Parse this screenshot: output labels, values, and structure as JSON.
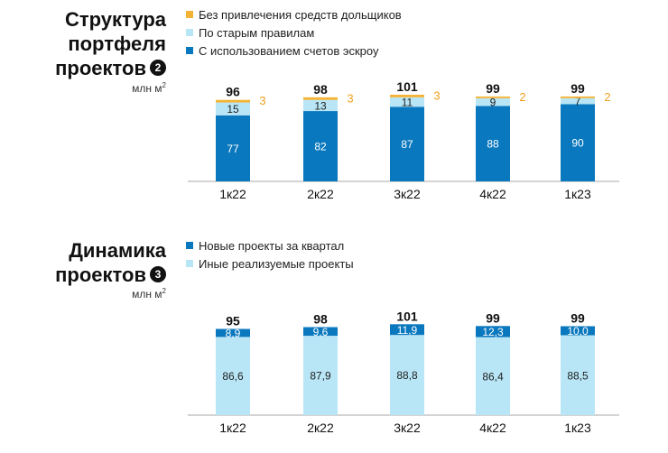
{
  "chart_data": [
    {
      "type": "bar",
      "stacked": true,
      "title_lines": [
        "Структура",
        "портфеля",
        "проектов"
      ],
      "badge": "2",
      "unit": "млн м",
      "unit_sup": "2",
      "categories": [
        "1к22",
        "2к22",
        "3к22",
        "4к22",
        "1к23"
      ],
      "totals": [
        "96",
        "98",
        "101",
        "99",
        "99"
      ],
      "legend_order": [
        2,
        1,
        0
      ],
      "series": [
        {
          "name": "С использованием счетов эскроу",
          "values": [
            77,
            82,
            87,
            88,
            90
          ],
          "labels": [
            "77",
            "82",
            "87",
            "88",
            "90"
          ],
          "color": "#0a78be",
          "label_color": "#ffffff",
          "label_position": "inside"
        },
        {
          "name": "По старым правилам",
          "values": [
            15,
            13,
            11,
            9,
            7
          ],
          "labels": [
            "15",
            "13",
            "11",
            "9",
            "7"
          ],
          "color": "#b8e6f7",
          "label_color": "#222222",
          "label_position": "inside"
        },
        {
          "name": "Без привлечения средств дольщиков",
          "values": [
            3,
            3,
            3,
            2,
            2
          ],
          "labels": [
            "3",
            "3",
            "3",
            "2",
            "2"
          ],
          "color": "#f5b335",
          "label_color": "#f0a020",
          "label_position": "outside"
        }
      ],
      "ylim": [
        0,
        101
      ]
    },
    {
      "type": "bar",
      "stacked": true,
      "title_lines": [
        "Динамика",
        "проектов"
      ],
      "badge": "3",
      "unit": "млн м",
      "unit_sup": "2",
      "categories": [
        "1к22",
        "2к22",
        "3к22",
        "4к22",
        "1к23"
      ],
      "totals": [
        "95",
        "98",
        "101",
        "99",
        "99"
      ],
      "legend_order": [
        1,
        0
      ],
      "series": [
        {
          "name": "Иные реализуемые проекты",
          "values": [
            86.6,
            87.9,
            88.8,
            86.4,
            88.5
          ],
          "labels": [
            "86,6",
            "87,9",
            "88,8",
            "86,4",
            "88,5"
          ],
          "color": "#b8e6f7",
          "label_color": "#222222",
          "label_position": "inside"
        },
        {
          "name": "Новые проекты за квартал",
          "values": [
            8.9,
            9.6,
            11.9,
            12.3,
            10.0
          ],
          "labels": [
            "8,9",
            "9,6",
            "11,9",
            "12,3",
            "10,0"
          ],
          "color": "#0a78be",
          "label_color": "#ffffff",
          "label_position": "inside"
        }
      ],
      "ylim": [
        0,
        101
      ]
    }
  ]
}
